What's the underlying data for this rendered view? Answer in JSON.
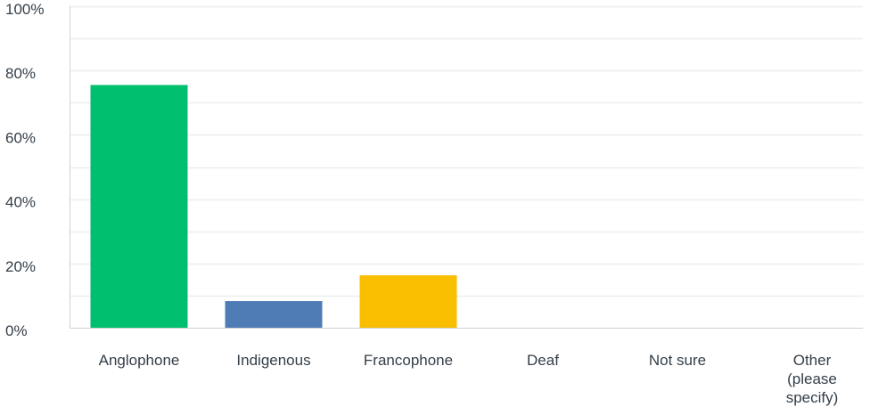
{
  "chart_data": {
    "type": "bar",
    "categories": [
      "Anglophone",
      "Indigenous",
      "Francophone",
      "Deaf",
      "Not sure",
      "Other (please specify)"
    ],
    "category_label_lines": [
      [
        "Anglophone"
      ],
      [
        "Indigenous"
      ],
      [
        "Francophone"
      ],
      [
        "Deaf"
      ],
      [
        "Not sure"
      ],
      [
        "Other",
        "(please",
        "specify)"
      ]
    ],
    "values": [
      75.5,
      8.3,
      16.3,
      0,
      0,
      0
    ],
    "colors": [
      "#00bf6f",
      "#507cb6",
      "#f9be00",
      "#6bc8cd",
      "#7d6cae",
      "#ef6c6c"
    ],
    "ylim": [
      0,
      100
    ],
    "y_ticks": [
      0,
      20,
      40,
      60,
      80,
      100
    ],
    "y_tick_labels": [
      "0%",
      "20%",
      "40%",
      "60%",
      "80%",
      "100%"
    ],
    "minor_gridlines": [
      10,
      30,
      50,
      70,
      90
    ],
    "grid": true,
    "title": "",
    "xlabel": "",
    "ylabel": ""
  }
}
